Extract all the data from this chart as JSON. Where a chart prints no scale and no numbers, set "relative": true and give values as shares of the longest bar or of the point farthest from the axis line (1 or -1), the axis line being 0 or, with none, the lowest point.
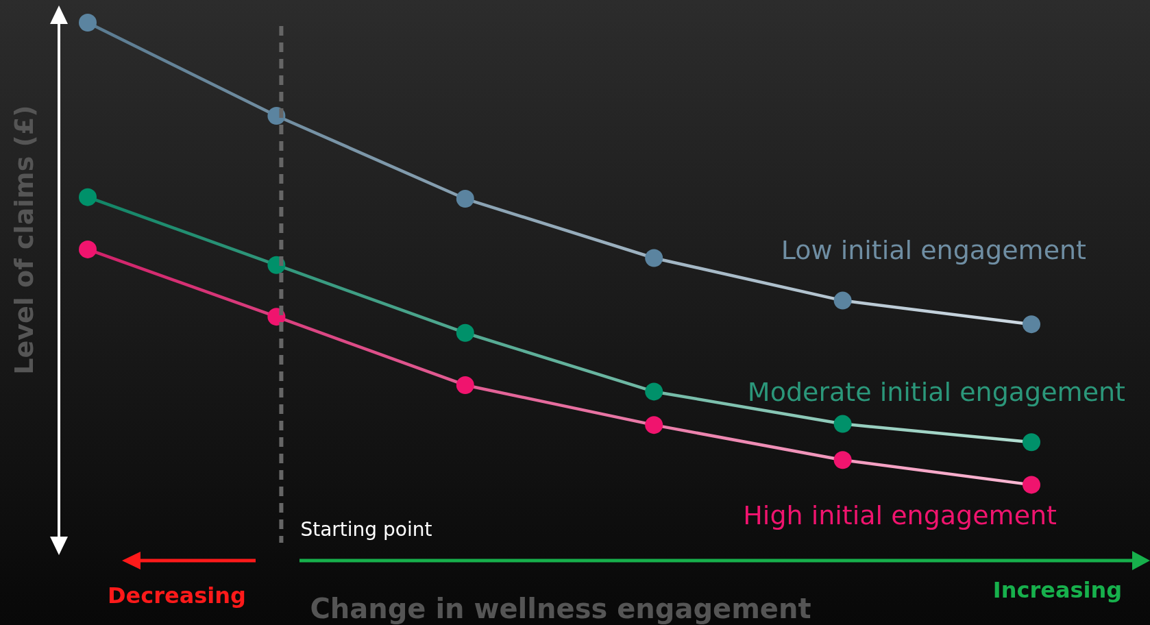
{
  "chart_data": {
    "type": "line",
    "relative": true,
    "ylabel": "Level of claims (£)",
    "xlabel": "Change in wellness engagement",
    "categories": [
      null,
      null,
      null,
      null,
      null,
      null
    ],
    "series": [
      {
        "name": "Low initial engagement",
        "color": "#5b84a0",
        "values": [
          1,
          0.827,
          0.673,
          0.563,
          0.484,
          0.44
        ]
      },
      {
        "name": "Moderate initial engagement",
        "color": "#00916a",
        "values": [
          0.676,
          0.55,
          0.424,
          0.315,
          0.255,
          0.221
        ]
      },
      {
        "name": "High initial engagement",
        "color": "#f0146e",
        "values": [
          0.579,
          0.454,
          0.327,
          0.253,
          0.188,
          0.142
        ]
      }
    ],
    "annotations": [
      "Decreasing",
      "Increasing",
      "Starting point"
    ],
    "marker": "circle",
    "line_style": "solid"
  }
}
